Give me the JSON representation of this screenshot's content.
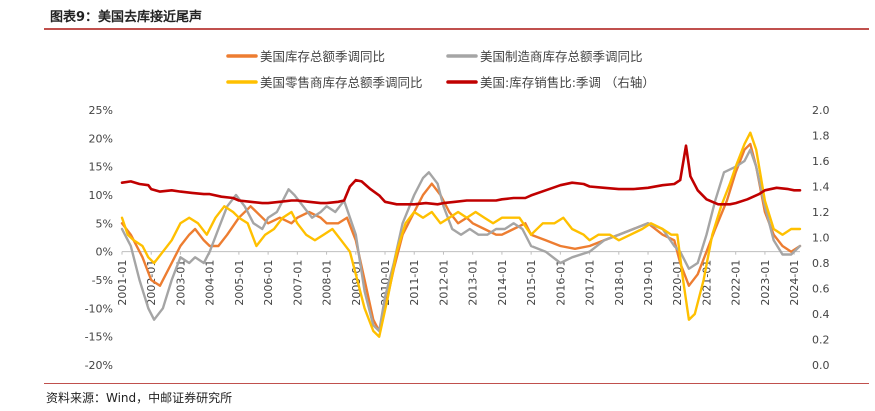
{
  "title": "图表9：美国去库接近尾声",
  "source": "资料来源：Wind，中邮证券研究所",
  "chart_data": {
    "type": "line",
    "title": "图表9：美国去库接近尾声",
    "xlabel": "",
    "ylabel": "",
    "x_ticks": [
      "2001-01",
      "2002-01",
      "2003-01",
      "2004-01",
      "2005-01",
      "2006-01",
      "2007-01",
      "2008-01",
      "2009-01",
      "2010-01",
      "2011-01",
      "2012-01",
      "2013-01",
      "2014-01",
      "2015-01",
      "2016-01",
      "2017-01",
      "2018-01",
      "2019-01",
      "2020-01",
      "2021-01",
      "2022-01",
      "2023-01",
      "2024-01"
    ],
    "x_range": [
      2001.0,
      2024.2
    ],
    "y_left": {
      "range": [
        -20,
        25
      ],
      "ticks": [
        "-20%",
        "-15%",
        "-10%",
        "-5%",
        "0%",
        "5%",
        "10%",
        "15%",
        "20%",
        "25%"
      ]
    },
    "y_right": {
      "range": [
        0.0,
        2.0
      ],
      "ticks": [
        "0.0",
        "0.2",
        "0.4",
        "0.6",
        "0.8",
        "1.0",
        "1.2",
        "1.4",
        "1.6",
        "1.8",
        "2.0"
      ]
    },
    "legend_position": "top",
    "grid": false,
    "series": [
      {
        "name": "美国库存总额季调同比",
        "axis": "left",
        "color": "#ED7D31",
        "points": [
          [
            2001.0,
            5
          ],
          [
            2001.3,
            3
          ],
          [
            2001.7,
            -1
          ],
          [
            2002.0,
            -5
          ],
          [
            2002.3,
            -6
          ],
          [
            2002.7,
            -2
          ],
          [
            2003.0,
            1
          ],
          [
            2003.3,
            3
          ],
          [
            2003.5,
            4
          ],
          [
            2003.8,
            2
          ],
          [
            2004.0,
            1
          ],
          [
            2004.3,
            1
          ],
          [
            2004.6,
            3
          ],
          [
            2005.0,
            6
          ],
          [
            2005.4,
            8
          ],
          [
            2005.8,
            6
          ],
          [
            2006.0,
            5
          ],
          [
            2006.4,
            6
          ],
          [
            2006.8,
            5
          ],
          [
            2007.0,
            6
          ],
          [
            2007.4,
            7
          ],
          [
            2007.8,
            6
          ],
          [
            2008.0,
            5
          ],
          [
            2008.4,
            5
          ],
          [
            2008.7,
            6
          ],
          [
            2009.0,
            2
          ],
          [
            2009.3,
            -5
          ],
          [
            2009.6,
            -12
          ],
          [
            2009.8,
            -14
          ],
          [
            2010.0,
            -10
          ],
          [
            2010.3,
            -3
          ],
          [
            2010.6,
            3
          ],
          [
            2011.0,
            7
          ],
          [
            2011.3,
            10
          ],
          [
            2011.6,
            12
          ],
          [
            2011.9,
            10
          ],
          [
            2012.2,
            7
          ],
          [
            2012.5,
            5
          ],
          [
            2012.8,
            6
          ],
          [
            2013.0,
            5
          ],
          [
            2013.4,
            4
          ],
          [
            2013.8,
            3
          ],
          [
            2014.0,
            3
          ],
          [
            2014.4,
            4
          ],
          [
            2014.8,
            5
          ],
          [
            2015.0,
            3
          ],
          [
            2015.5,
            2
          ],
          [
            2016.0,
            1
          ],
          [
            2016.5,
            0.5
          ],
          [
            2017.0,
            1
          ],
          [
            2017.5,
            2
          ],
          [
            2018.0,
            3
          ],
          [
            2018.5,
            4
          ],
          [
            2019.0,
            5
          ],
          [
            2019.5,
            3
          ],
          [
            2019.9,
            2
          ],
          [
            2020.1,
            -2
          ],
          [
            2020.4,
            -6
          ],
          [
            2020.7,
            -4
          ],
          [
            2021.0,
            0
          ],
          [
            2021.3,
            4
          ],
          [
            2021.7,
            9
          ],
          [
            2022.0,
            14
          ],
          [
            2022.3,
            18
          ],
          [
            2022.5,
            19
          ],
          [
            2022.7,
            15
          ],
          [
            2023.0,
            7
          ],
          [
            2023.3,
            3
          ],
          [
            2023.6,
            1
          ],
          [
            2023.9,
            0
          ],
          [
            2024.2,
            1
          ]
        ]
      },
      {
        "name": "美国制造商库存总额季调同比",
        "axis": "left",
        "color": "#A5A5A5",
        "points": [
          [
            2001.0,
            4
          ],
          [
            2001.3,
            1
          ],
          [
            2001.6,
            -5
          ],
          [
            2001.9,
            -10
          ],
          [
            2002.1,
            -12
          ],
          [
            2002.4,
            -10
          ],
          [
            2002.7,
            -5
          ],
          [
            2003.0,
            -1
          ],
          [
            2003.3,
            -2
          ],
          [
            2003.5,
            -1
          ],
          [
            2003.8,
            -2
          ],
          [
            2004.0,
            0
          ],
          [
            2004.3,
            4
          ],
          [
            2004.6,
            8
          ],
          [
            2004.9,
            10
          ],
          [
            2005.2,
            8
          ],
          [
            2005.5,
            5
          ],
          [
            2005.8,
            4
          ],
          [
            2006.0,
            6
          ],
          [
            2006.3,
            7
          ],
          [
            2006.7,
            11
          ],
          [
            2006.9,
            10
          ],
          [
            2007.2,
            8
          ],
          [
            2007.5,
            6
          ],
          [
            2007.8,
            7
          ],
          [
            2008.0,
            8
          ],
          [
            2008.3,
            7
          ],
          [
            2008.6,
            9
          ],
          [
            2009.0,
            3
          ],
          [
            2009.3,
            -7
          ],
          [
            2009.6,
            -13
          ],
          [
            2009.8,
            -14
          ],
          [
            2010.0,
            -8
          ],
          [
            2010.3,
            -2
          ],
          [
            2010.6,
            5
          ],
          [
            2011.0,
            10
          ],
          [
            2011.3,
            13
          ],
          [
            2011.5,
            14
          ],
          [
            2011.8,
            12
          ],
          [
            2012.0,
            8
          ],
          [
            2012.3,
            4
          ],
          [
            2012.6,
            3
          ],
          [
            2012.9,
            4
          ],
          [
            2013.2,
            3
          ],
          [
            2013.5,
            3
          ],
          [
            2013.8,
            4
          ],
          [
            2014.1,
            4
          ],
          [
            2014.4,
            5
          ],
          [
            2014.7,
            4
          ],
          [
            2015.0,
            1
          ],
          [
            2015.5,
            0
          ],
          [
            2016.0,
            -2
          ],
          [
            2016.4,
            -1
          ],
          [
            2017.0,
            0
          ],
          [
            2017.5,
            2
          ],
          [
            2018.0,
            3
          ],
          [
            2018.5,
            4
          ],
          [
            2019.0,
            5
          ],
          [
            2019.5,
            4
          ],
          [
            2019.9,
            1
          ],
          [
            2020.1,
            0
          ],
          [
            2020.4,
            -3
          ],
          [
            2020.7,
            -2
          ],
          [
            2021.0,
            3
          ],
          [
            2021.3,
            9
          ],
          [
            2021.6,
            14
          ],
          [
            2022.0,
            15
          ],
          [
            2022.3,
            16
          ],
          [
            2022.5,
            18
          ],
          [
            2022.7,
            15
          ],
          [
            2023.0,
            8
          ],
          [
            2023.3,
            2
          ],
          [
            2023.6,
            -0.5
          ],
          [
            2023.9,
            -0.5
          ],
          [
            2024.2,
            1
          ]
        ]
      },
      {
        "name": "美国零售商库存总额季调同比",
        "axis": "left",
        "color": "#FFC000",
        "points": [
          [
            2001.0,
            6
          ],
          [
            2001.2,
            3
          ],
          [
            2001.4,
            2
          ],
          [
            2001.7,
            1
          ],
          [
            2001.9,
            -1
          ],
          [
            2002.1,
            -2
          ],
          [
            2002.4,
            0
          ],
          [
            2002.7,
            2
          ],
          [
            2003.0,
            5
          ],
          [
            2003.3,
            6
          ],
          [
            2003.6,
            5
          ],
          [
            2003.9,
            3
          ],
          [
            2004.2,
            6
          ],
          [
            2004.5,
            8
          ],
          [
            2004.8,
            7
          ],
          [
            2005.0,
            6
          ],
          [
            2005.3,
            5
          ],
          [
            2005.6,
            1
          ],
          [
            2005.9,
            3
          ],
          [
            2006.2,
            4
          ],
          [
            2006.5,
            6
          ],
          [
            2006.8,
            7
          ],
          [
            2007.0,
            5
          ],
          [
            2007.3,
            3
          ],
          [
            2007.6,
            2
          ],
          [
            2007.9,
            3
          ],
          [
            2008.2,
            4
          ],
          [
            2008.5,
            2
          ],
          [
            2008.8,
            0
          ],
          [
            2009.0,
            -4
          ],
          [
            2009.3,
            -10
          ],
          [
            2009.6,
            -14
          ],
          [
            2009.8,
            -15
          ],
          [
            2010.1,
            -8
          ],
          [
            2010.4,
            0
          ],
          [
            2010.7,
            5
          ],
          [
            2011.0,
            7
          ],
          [
            2011.3,
            6
          ],
          [
            2011.6,
            7
          ],
          [
            2011.9,
            5
          ],
          [
            2012.2,
            6
          ],
          [
            2012.5,
            7
          ],
          [
            2012.8,
            6
          ],
          [
            2013.1,
            7
          ],
          [
            2013.4,
            6
          ],
          [
            2013.7,
            5
          ],
          [
            2014.0,
            6
          ],
          [
            2014.3,
            6
          ],
          [
            2014.6,
            6
          ],
          [
            2015.0,
            3
          ],
          [
            2015.4,
            5
          ],
          [
            2015.8,
            5
          ],
          [
            2016.1,
            6
          ],
          [
            2016.4,
            4
          ],
          [
            2016.8,
            3
          ],
          [
            2017.0,
            2
          ],
          [
            2017.3,
            3
          ],
          [
            2017.7,
            3
          ],
          [
            2018.0,
            2
          ],
          [
            2018.4,
            3
          ],
          [
            2018.8,
            4
          ],
          [
            2019.1,
            5
          ],
          [
            2019.5,
            4
          ],
          [
            2019.8,
            3
          ],
          [
            2020.0,
            3
          ],
          [
            2020.2,
            -5
          ],
          [
            2020.4,
            -12
          ],
          [
            2020.6,
            -11
          ],
          [
            2020.9,
            -5
          ],
          [
            2021.2,
            3
          ],
          [
            2021.5,
            8
          ],
          [
            2021.8,
            12
          ],
          [
            2022.0,
            15
          ],
          [
            2022.3,
            19
          ],
          [
            2022.5,
            21
          ],
          [
            2022.7,
            18
          ],
          [
            2023.0,
            9
          ],
          [
            2023.3,
            4
          ],
          [
            2023.6,
            3
          ],
          [
            2023.9,
            4
          ],
          [
            2024.2,
            4
          ]
        ]
      },
      {
        "name": "美国:库存销售比:季调 （右轴）",
        "axis": "right",
        "color": "#C00000",
        "points": [
          [
            2001.0,
            1.43
          ],
          [
            2001.3,
            1.44
          ],
          [
            2001.6,
            1.42
          ],
          [
            2001.9,
            1.41
          ],
          [
            2002.0,
            1.38
          ],
          [
            2002.3,
            1.36
          ],
          [
            2002.7,
            1.37
          ],
          [
            2003.0,
            1.36
          ],
          [
            2003.4,
            1.35
          ],
          [
            2003.8,
            1.34
          ],
          [
            2004.0,
            1.34
          ],
          [
            2004.4,
            1.32
          ],
          [
            2004.8,
            1.31
          ],
          [
            2005.0,
            1.29
          ],
          [
            2005.4,
            1.28
          ],
          [
            2005.8,
            1.27
          ],
          [
            2006.0,
            1.27
          ],
          [
            2006.4,
            1.28
          ],
          [
            2006.8,
            1.29
          ],
          [
            2007.0,
            1.29
          ],
          [
            2007.4,
            1.28
          ],
          [
            2007.8,
            1.27
          ],
          [
            2008.0,
            1.27
          ],
          [
            2008.4,
            1.28
          ],
          [
            2008.6,
            1.29
          ],
          [
            2008.8,
            1.4
          ],
          [
            2009.0,
            1.45
          ],
          [
            2009.2,
            1.44
          ],
          [
            2009.5,
            1.38
          ],
          [
            2009.8,
            1.33
          ],
          [
            2010.0,
            1.28
          ],
          [
            2010.4,
            1.26
          ],
          [
            2010.8,
            1.26
          ],
          [
            2011.0,
            1.26
          ],
          [
            2011.4,
            1.27
          ],
          [
            2011.8,
            1.26
          ],
          [
            2012.0,
            1.27
          ],
          [
            2012.4,
            1.28
          ],
          [
            2012.8,
            1.29
          ],
          [
            2013.0,
            1.29
          ],
          [
            2013.4,
            1.29
          ],
          [
            2013.8,
            1.29
          ],
          [
            2014.0,
            1.3
          ],
          [
            2014.4,
            1.31
          ],
          [
            2014.8,
            1.31
          ],
          [
            2015.0,
            1.33
          ],
          [
            2015.5,
            1.37
          ],
          [
            2016.0,
            1.41
          ],
          [
            2016.4,
            1.43
          ],
          [
            2016.8,
            1.42
          ],
          [
            2017.0,
            1.4
          ],
          [
            2017.5,
            1.39
          ],
          [
            2018.0,
            1.38
          ],
          [
            2018.5,
            1.38
          ],
          [
            2019.0,
            1.39
          ],
          [
            2019.5,
            1.41
          ],
          [
            2019.9,
            1.42
          ],
          [
            2020.1,
            1.45
          ],
          [
            2020.3,
            1.72
          ],
          [
            2020.45,
            1.48
          ],
          [
            2020.7,
            1.37
          ],
          [
            2021.0,
            1.3
          ],
          [
            2021.4,
            1.26
          ],
          [
            2021.8,
            1.26
          ],
          [
            2022.0,
            1.27
          ],
          [
            2022.4,
            1.3
          ],
          [
            2022.8,
            1.34
          ],
          [
            2023.0,
            1.37
          ],
          [
            2023.4,
            1.39
          ],
          [
            2023.8,
            1.38
          ],
          [
            2024.0,
            1.37
          ],
          [
            2024.2,
            1.37
          ]
        ]
      }
    ]
  }
}
